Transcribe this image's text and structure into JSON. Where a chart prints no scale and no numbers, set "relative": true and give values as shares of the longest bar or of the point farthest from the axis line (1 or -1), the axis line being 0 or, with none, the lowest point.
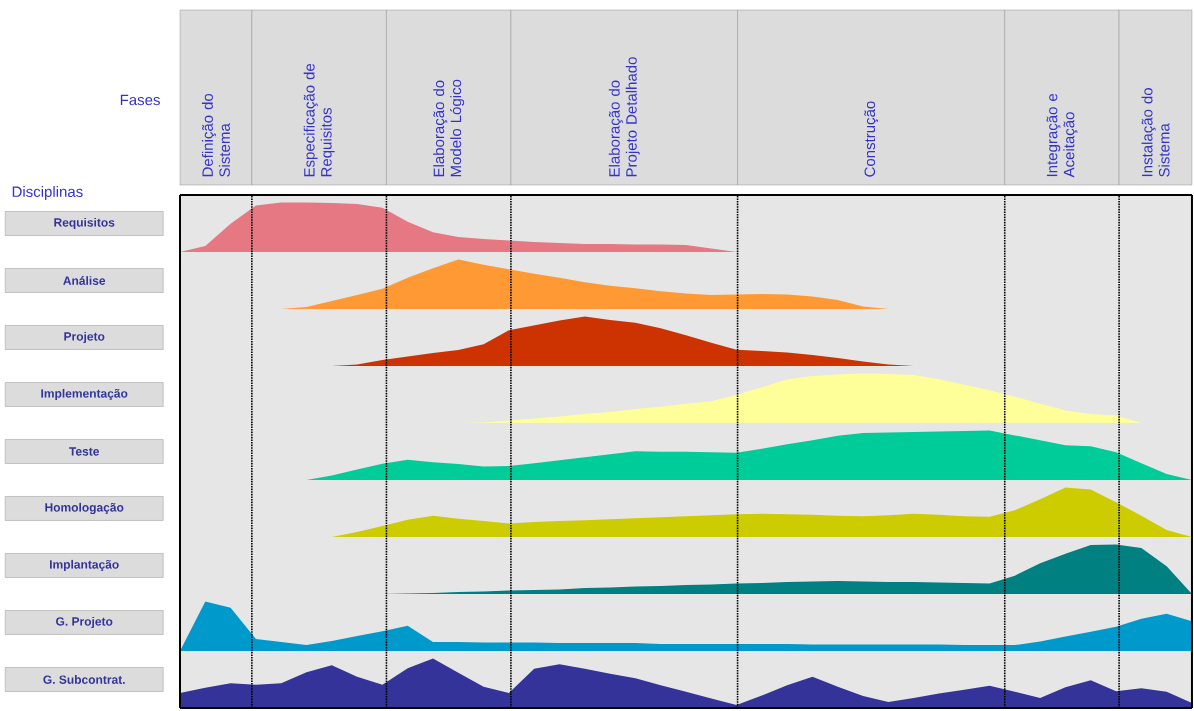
{
  "chart_data": [
    {
      "type": "area",
      "ylabel": "Requisitos",
      "relative": true,
      "color": "#e57883",
      "grid": "x",
      "annotations": [
        "Fases",
        "Disciplinas",
        "Definição do Sistema",
        "Especificação de Requisitos",
        "Elaboração do Modelo Lógico",
        "Elaboração do Projeto Detalhado",
        "Construção",
        "Integração e Aceitação",
        "Instalação do Sistema"
      ],
      "categories": [
        null,
        null,
        null,
        null,
        null,
        null,
        null,
        null,
        null,
        null,
        null,
        null,
        null,
        null,
        null,
        null,
        null,
        null,
        null,
        null,
        null,
        null,
        null,
        null,
        null,
        null,
        null,
        null,
        null,
        null,
        null,
        null,
        null,
        null,
        null,
        null,
        null,
        null,
        null,
        null,
        null
      ],
      "values": [
        0,
        0.12,
        0.57,
        0.94,
        1,
        1,
        0.99,
        0.97,
        0.89,
        0.61,
        0.4,
        0.3,
        0.26,
        0.23,
        0.2,
        0.18,
        0.16,
        0.16,
        0.15,
        0.15,
        0.14,
        0.07,
        0,
        0,
        0,
        0,
        0,
        0,
        0,
        0,
        0,
        0,
        0,
        0,
        0,
        0,
        0,
        0,
        0,
        0,
        0
      ]
    },
    {
      "type": "area",
      "ylabel": "Análise",
      "relative": true,
      "color": "#ff9933",
      "grid": "x",
      "categories": [
        null,
        null,
        null,
        null,
        null,
        null,
        null,
        null,
        null,
        null,
        null,
        null,
        null,
        null,
        null,
        null,
        null,
        null,
        null,
        null,
        null,
        null,
        null,
        null,
        null,
        null,
        null,
        null,
        null,
        null,
        null,
        null,
        null,
        null,
        null,
        null,
        null,
        null,
        null,
        null,
        null
      ],
      "values": [
        0,
        0,
        0,
        0,
        0,
        0.04,
        0.16,
        0.28,
        0.41,
        0.63,
        0.82,
        1,
        0.89,
        0.8,
        0.71,
        0.63,
        0.54,
        0.47,
        0.42,
        0.36,
        0.31,
        0.28,
        0.29,
        0.3,
        0.29,
        0.25,
        0.18,
        0.05,
        0,
        0,
        0,
        0,
        0,
        0,
        0,
        0,
        0,
        0,
        0,
        0,
        0
      ]
    },
    {
      "type": "area",
      "ylabel": "Projeto",
      "relative": true,
      "color": "#cc3300",
      "grid": "x",
      "categories": [
        null,
        null,
        null,
        null,
        null,
        null,
        null,
        null,
        null,
        null,
        null,
        null,
        null,
        null,
        null,
        null,
        null,
        null,
        null,
        null,
        null,
        null,
        null,
        null,
        null,
        null,
        null,
        null,
        null,
        null,
        null,
        null,
        null,
        null,
        null,
        null,
        null,
        null,
        null,
        null,
        null
      ],
      "values": [
        0,
        0,
        0,
        0,
        0,
        0,
        0,
        0.03,
        0.12,
        0.19,
        0.26,
        0.32,
        0.44,
        0.72,
        0.82,
        0.92,
        1,
        0.93,
        0.87,
        0.76,
        0.62,
        0.47,
        0.33,
        0.3,
        0.27,
        0.22,
        0.16,
        0.09,
        0.03,
        0,
        0,
        0,
        0,
        0,
        0,
        0,
        0,
        0,
        0,
        0,
        0
      ]
    },
    {
      "type": "area",
      "ylabel": "Implementação",
      "relative": true,
      "color": "#ffff99",
      "grid": "x",
      "categories": [
        null,
        null,
        null,
        null,
        null,
        null,
        null,
        null,
        null,
        null,
        null,
        null,
        null,
        null,
        null,
        null,
        null,
        null,
        null,
        null,
        null,
        null,
        null,
        null,
        null,
        null,
        null,
        null,
        null,
        null,
        null,
        null,
        null,
        null,
        null,
        null,
        null,
        null,
        null,
        null,
        null
      ],
      "values": [
        0,
        0,
        0,
        0,
        0,
        0,
        0,
        0,
        0,
        0,
        0,
        0,
        0.01,
        0.05,
        0.09,
        0.13,
        0.18,
        0.22,
        0.28,
        0.33,
        0.39,
        0.44,
        0.57,
        0.72,
        0.88,
        0.95,
        0.98,
        1,
        0.99,
        0.97,
        0.88,
        0.77,
        0.66,
        0.53,
        0.39,
        0.25,
        0.18,
        0.15,
        0,
        0,
        0
      ]
    },
    {
      "type": "area",
      "ylabel": "Teste",
      "relative": true,
      "color": "#00cc99",
      "grid": "x",
      "categories": [
        null,
        null,
        null,
        null,
        null,
        null,
        null,
        null,
        null,
        null,
        null,
        null,
        null,
        null,
        null,
        null,
        null,
        null,
        null,
        null,
        null,
        null,
        null,
        null,
        null,
        null,
        null,
        null,
        null,
        null,
        null,
        null,
        null,
        null,
        null,
        null,
        null,
        null,
        null,
        null,
        null
      ],
      "values": [
        0,
        0,
        0,
        0,
        0,
        0,
        0.09,
        0.21,
        0.33,
        0.41,
        0.36,
        0.32,
        0.27,
        0.28,
        0.34,
        0.4,
        0.46,
        0.52,
        0.58,
        0.57,
        0.57,
        0.56,
        0.55,
        0.63,
        0.72,
        0.8,
        0.89,
        0.95,
        0.96,
        0.97,
        0.98,
        0.99,
        1,
        0.9,
        0.8,
        0.7,
        0.68,
        0.56,
        0.34,
        0.12,
        0
      ]
    },
    {
      "type": "area",
      "ylabel": "Homologação",
      "relative": true,
      "color": "#cccc00",
      "grid": "x",
      "categories": [
        null,
        null,
        null,
        null,
        null,
        null,
        null,
        null,
        null,
        null,
        null,
        null,
        null,
        null,
        null,
        null,
        null,
        null,
        null,
        null,
        null,
        null,
        null,
        null,
        null,
        null,
        null,
        null,
        null,
        null,
        null,
        null,
        null,
        null,
        null,
        null,
        null,
        null,
        null,
        null,
        null
      ],
      "values": [
        0,
        0,
        0,
        0,
        0,
        0,
        0,
        0.1,
        0.22,
        0.35,
        0.43,
        0.37,
        0.32,
        0.27,
        0.3,
        0.32,
        0.34,
        0.36,
        0.38,
        0.4,
        0.42,
        0.44,
        0.46,
        0.47,
        0.46,
        0.45,
        0.43,
        0.42,
        0.44,
        0.47,
        0.45,
        0.42,
        0.41,
        0.54,
        0.76,
        1,
        0.96,
        0.7,
        0.43,
        0.14,
        0
      ]
    },
    {
      "type": "area",
      "ylabel": "Implantação",
      "relative": true,
      "color": "#008080",
      "grid": "x",
      "categories": [
        null,
        null,
        null,
        null,
        null,
        null,
        null,
        null,
        null,
        null,
        null,
        null,
        null,
        null,
        null,
        null,
        null,
        null,
        null,
        null,
        null,
        null,
        null,
        null,
        null,
        null,
        null,
        null,
        null,
        null,
        null,
        null,
        null,
        null,
        null,
        null,
        null,
        null,
        null,
        null,
        null
      ],
      "values": [
        0,
        0,
        0,
        0,
        0,
        0,
        0,
        0,
        0,
        0.01,
        0.02,
        0.04,
        0.05,
        0.07,
        0.08,
        0.09,
        0.12,
        0.13,
        0.15,
        0.16,
        0.18,
        0.19,
        0.21,
        0.22,
        0.24,
        0.25,
        0.26,
        0.25,
        0.24,
        0.24,
        0.23,
        0.22,
        0.21,
        0.37,
        0.62,
        0.81,
        0.99,
        1,
        0.93,
        0.56,
        0
      ]
    },
    {
      "type": "area",
      "ylabel": "G. Projeto",
      "relative": true,
      "color": "#0099cc",
      "grid": "x",
      "categories": [
        null,
        null,
        null,
        null,
        null,
        null,
        null,
        null,
        null,
        null,
        null,
        null,
        null,
        null,
        null,
        null,
        null,
        null,
        null,
        null,
        null,
        null,
        null,
        null,
        null,
        null,
        null,
        null,
        null,
        null,
        null,
        null,
        null,
        null,
        null,
        null,
        null,
        null,
        null,
        null,
        null
      ],
      "values": [
        0,
        1,
        0.87,
        0.24,
        0.18,
        0.12,
        0.2,
        0.3,
        0.4,
        0.51,
        0.18,
        0.18,
        0.17,
        0.17,
        0.17,
        0.16,
        0.16,
        0.16,
        0.16,
        0.14,
        0.14,
        0.14,
        0.14,
        0.14,
        0.14,
        0.13,
        0.13,
        0.13,
        0.13,
        0.13,
        0.13,
        0.12,
        0.12,
        0.12,
        0.19,
        0.29,
        0.39,
        0.49,
        0.65,
        0.75,
        0.6
      ]
    },
    {
      "type": "area",
      "ylabel": "G. Subcontrat.",
      "relative": true,
      "color": "#333399",
      "grid": "x",
      "categories": [
        null,
        null,
        null,
        null,
        null,
        null,
        null,
        null,
        null,
        null,
        null,
        null,
        null,
        null,
        null,
        null,
        null,
        null,
        null,
        null,
        null,
        null,
        null,
        null,
        null,
        null,
        null,
        null,
        null,
        null,
        null,
        null,
        null,
        null,
        null,
        null,
        null,
        null,
        null,
        null,
        null
      ],
      "values": [
        0.3,
        0.41,
        0.5,
        0.47,
        0.5,
        0.72,
        0.86,
        0.63,
        0.47,
        0.8,
        1,
        0.71,
        0.43,
        0.3,
        0.79,
        0.88,
        0.79,
        0.69,
        0.6,
        0.46,
        0.33,
        0.19,
        0.06,
        0.25,
        0.46,
        0.63,
        0.43,
        0.24,
        0.12,
        0.2,
        0.29,
        0.37,
        0.45,
        0.33,
        0.2,
        0.42,
        0.56,
        0.34,
        0.4,
        0.33,
        0.1
      ]
    }
  ]
}
